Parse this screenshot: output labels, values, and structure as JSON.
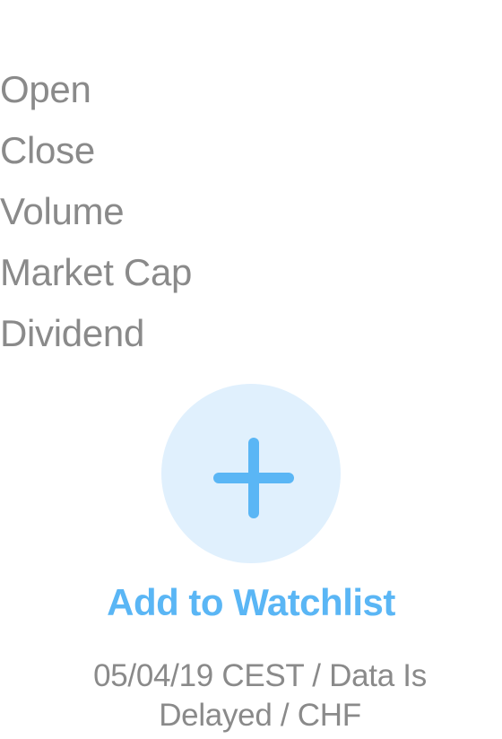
{
  "stats": {
    "labels": [
      "Open",
      "Close",
      "Volume",
      "Market Cap",
      "Dividend"
    ]
  },
  "watchlist": {
    "icon": "plus-icon",
    "label": "Add to Watchlist",
    "accent_color": "#5ab6f5",
    "circle_color": "#e0f0fd"
  },
  "footer": {
    "note": "05/04/19 CEST / Data Is Delayed / CHF"
  }
}
